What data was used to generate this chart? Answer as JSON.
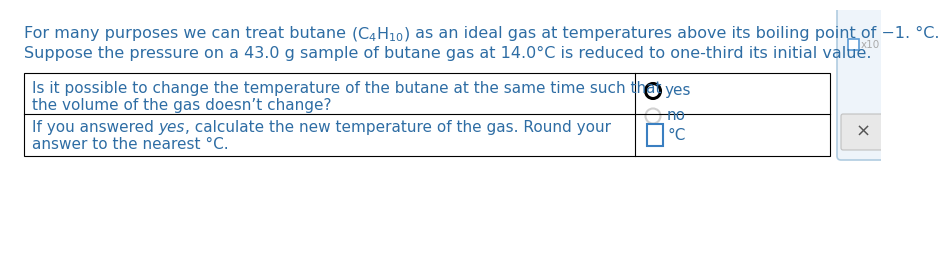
{
  "bg_color": "#ffffff",
  "blue": "#2e6da4",
  "black": "#000000",
  "gray": "#aaaaaa",
  "light_gray": "#d0d0d0",
  "input_blue": "#3a7fc1",
  "line1_part1": "For many purposes we can treat butane ",
  "line1_formula": "$\\mathsf{(C_4H_{10})}$",
  "line1_part2": " as an ideal gas at temperatures above its boiling point of −1. °C.",
  "line2": "Suppose the pressure on a 43.0 g sample of butane gas at 14.0°C is reduced to one-third its initial value.",
  "q1_line1": "Is it possible to change the temperature of the butane at the same time such that",
  "q1_line2": "the volume of the gas doesn’t change?",
  "q2_line1_pre": "If you answered ",
  "q2_italic": "yes",
  "q2_line1_post": ", calculate the new temperature of the gas. Round your",
  "q2_line2": "answer to the nearest °C.",
  "yes_label": "yes",
  "no_label": "no",
  "deg_c": "°C",
  "font_size_main": 11.5,
  "font_size_table": 11.0,
  "font_size_small": 8.5
}
